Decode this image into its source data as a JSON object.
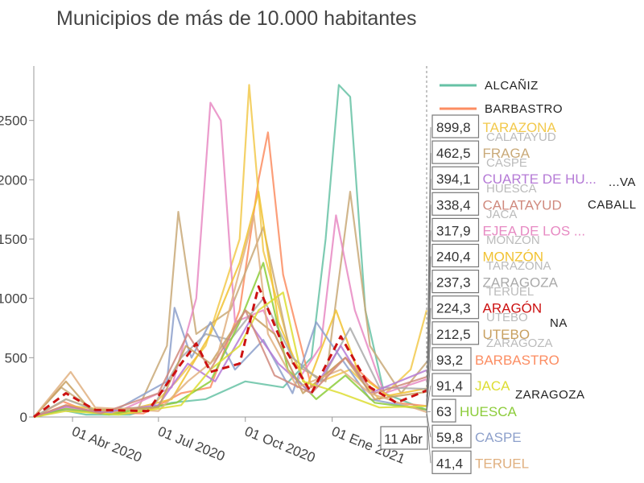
{
  "chart_data": {
    "type": "line",
    "title": "Municipios de más de 10.000 habitantes",
    "ylim": [
      0,
      2900
    ],
    "yticks": [
      0,
      500,
      1000,
      1500,
      2000,
      2500
    ],
    "ytick_labels": [
      "0",
      "500",
      "1000",
      "1500",
      "2000",
      "2500"
    ],
    "xlim": [
      "2020-02-20",
      "2021-04-11"
    ],
    "xticks": [
      "2020-04-01",
      "2020-07-01",
      "2020-10-01",
      "2021-01-01"
    ],
    "xtick_labels": [
      "01 Abr 2020",
      "01 Jul 2020",
      "01 Oct 2020",
      "01 Ene 2021"
    ],
    "hover_date": "11 Abr",
    "legend": [
      {
        "name": "ALCAÑIZ",
        "color": "#66c2a5"
      },
      {
        "name": "BARBASTRO",
        "color": "#fc8d62"
      }
    ],
    "hover_values": [
      {
        "value": "899,8",
        "name": "TARAZONA",
        "color": "#f2c94c"
      },
      {
        "value": "462,5",
        "name": "FRAGA",
        "color": "#c9a978"
      },
      {
        "value": "394,1",
        "name": "CUARTE DE HU...",
        "color": "#b57ad6"
      },
      {
        "value": "338,4",
        "name": "CALATAYUD",
        "color": "#d08a7e"
      },
      {
        "value": "317,9",
        "name": "EJEA DE LOS ...",
        "color": "#e78ac3"
      },
      {
        "value": "240,4",
        "name": "MONZÓN",
        "color": "#f1c232"
      },
      {
        "value": "237,3",
        "name": "ZARAGOZA",
        "color": "#aaaaaa"
      },
      {
        "value": "224,3",
        "name": "ARAGÓN",
        "color": "#cc1111"
      },
      {
        "value": "212,5",
        "name": "UTEBO",
        "color": "#c8a060"
      },
      {
        "value": "93,2",
        "name": "BARBASTRO",
        "color": "#fc8d62"
      },
      {
        "value": "91,4",
        "name": "JACA",
        "color": "#dddd33"
      },
      {
        "value": "63",
        "name": "HUESCA",
        "color": "#8ccc3a"
      },
      {
        "value": "59,8",
        "name": "CASPE",
        "color": "#8da0cb"
      },
      {
        "value": "41,4",
        "name": "TERUEL",
        "color": "#e0b080"
      }
    ],
    "ghost_labels": [
      "CALATAYUD",
      "CASPE",
      "HUESCA",
      "JACA",
      "MONZÓN",
      "TARAZONA",
      "TERUEL",
      "UTEBO",
      "ZARAGOZA"
    ],
    "overlapped_labels": [
      {
        "text": "...VA"
      },
      {
        "text": "CABALL"
      },
      {
        "text": "NA"
      },
      {
        "text": "ZARAGOZA"
      }
    ],
    "series": [
      {
        "name": "ALCAÑIZ",
        "color": "#66c2a5",
        "points": [
          [
            "2020-02-20",
            0
          ],
          [
            "2020-03-20",
            60
          ],
          [
            "2020-04-15",
            20
          ],
          [
            "2020-06-01",
            20
          ],
          [
            "2020-07-15",
            120
          ],
          [
            "2020-08-20",
            150
          ],
          [
            "2020-10-01",
            300
          ],
          [
            "2020-11-10",
            250
          ],
          [
            "2020-12-10",
            500
          ],
          [
            "2020-12-25",
            1500
          ],
          [
            "2021-01-08",
            2800
          ],
          [
            "2021-01-20",
            2700
          ],
          [
            "2021-02-05",
            900
          ],
          [
            "2021-02-25",
            200
          ],
          [
            "2021-04-11",
            60
          ]
        ]
      },
      {
        "name": "BARBASTRO",
        "color": "#fc8d62",
        "points": [
          [
            "2020-02-20",
            0
          ],
          [
            "2020-03-22",
            130
          ],
          [
            "2020-04-20",
            40
          ],
          [
            "2020-06-15",
            30
          ],
          [
            "2020-07-25",
            200
          ],
          [
            "2020-08-25",
            250
          ],
          [
            "2020-09-25",
            900
          ],
          [
            "2020-10-15",
            2000
          ],
          [
            "2020-10-25",
            2400
          ],
          [
            "2020-11-10",
            1200
          ],
          [
            "2020-12-10",
            250
          ],
          [
            "2021-01-15",
            500
          ],
          [
            "2021-02-10",
            300
          ],
          [
            "2021-03-10",
            120
          ],
          [
            "2021-04-11",
            93
          ]
        ]
      },
      {
        "name": "TARAZONA",
        "color": "#f2c94c",
        "points": [
          [
            "2020-02-20",
            0
          ],
          [
            "2020-03-25",
            150
          ],
          [
            "2020-05-01",
            50
          ],
          [
            "2020-06-20",
            60
          ],
          [
            "2020-07-20",
            300
          ],
          [
            "2020-08-20",
            600
          ],
          [
            "2020-09-25",
            1500
          ],
          [
            "2020-10-05",
            2800
          ],
          [
            "2020-10-20",
            1400
          ],
          [
            "2020-11-20",
            500
          ],
          [
            "2020-12-20",
            300
          ],
          [
            "2021-01-20",
            400
          ],
          [
            "2021-02-20",
            150
          ],
          [
            "2021-03-25",
            400
          ],
          [
            "2021-04-11",
            900
          ]
        ]
      },
      {
        "name": "FRAGA",
        "color": "#c9a978",
        "points": [
          [
            "2020-02-20",
            0
          ],
          [
            "2020-03-20",
            250
          ],
          [
            "2020-04-25",
            50
          ],
          [
            "2020-06-10",
            80
          ],
          [
            "2020-07-10",
            600
          ],
          [
            "2020-07-22",
            1730
          ],
          [
            "2020-08-10",
            700
          ],
          [
            "2020-09-15",
            900
          ],
          [
            "2020-10-20",
            1600
          ],
          [
            "2020-11-20",
            450
          ],
          [
            "2020-12-25",
            300
          ],
          [
            "2021-01-20",
            1900
          ],
          [
            "2021-02-10",
            600
          ],
          [
            "2021-03-15",
            200
          ],
          [
            "2021-04-11",
            462
          ]
        ]
      },
      {
        "name": "EJEA DE LOS ...",
        "color": "#e78ac3",
        "points": [
          [
            "2020-02-20",
            0
          ],
          [
            "2020-03-25",
            80
          ],
          [
            "2020-05-15",
            30
          ],
          [
            "2020-07-15",
            250
          ],
          [
            "2020-08-10",
            1000
          ],
          [
            "2020-08-25",
            2650
          ],
          [
            "2020-09-05",
            2500
          ],
          [
            "2020-09-20",
            800
          ],
          [
            "2020-10-20",
            900
          ],
          [
            "2020-11-25",
            300
          ],
          [
            "2020-12-20",
            600
          ],
          [
            "2021-01-05",
            1700
          ],
          [
            "2021-01-25",
            900
          ],
          [
            "2021-02-25",
            200
          ],
          [
            "2021-04-11",
            318
          ]
        ]
      },
      {
        "name": "MONZÓN",
        "color": "#f1c232",
        "points": [
          [
            "2020-02-20",
            0
          ],
          [
            "2020-03-25",
            100
          ],
          [
            "2020-05-20",
            40
          ],
          [
            "2020-07-15",
            150
          ],
          [
            "2020-08-25",
            700
          ],
          [
            "2020-09-25",
            1300
          ],
          [
            "2020-10-15",
            1900
          ],
          [
            "2020-11-05",
            800
          ],
          [
            "2020-12-05",
            250
          ],
          [
            "2021-01-05",
            900
          ],
          [
            "2021-01-30",
            350
          ],
          [
            "2021-03-01",
            180
          ],
          [
            "2021-04-11",
            240
          ]
        ]
      },
      {
        "name": "ZARAGOZA",
        "color": "#aaaaaa",
        "points": [
          [
            "2020-02-20",
            0
          ],
          [
            "2020-03-25",
            150
          ],
          [
            "2020-05-01",
            40
          ],
          [
            "2020-06-25",
            80
          ],
          [
            "2020-07-25",
            500
          ],
          [
            "2020-08-20",
            700
          ],
          [
            "2020-09-15",
            650
          ],
          [
            "2020-10-20",
            1000
          ],
          [
            "2020-11-20",
            500
          ],
          [
            "2020-12-20",
            300
          ],
          [
            "2021-01-20",
            750
          ],
          [
            "2021-02-20",
            250
          ],
          [
            "2021-04-11",
            237
          ]
        ]
      },
      {
        "name": "ARAGÓN",
        "color": "#cc1111",
        "dash": true,
        "points": [
          [
            "2020-02-20",
            0
          ],
          [
            "2020-03-25",
            200
          ],
          [
            "2020-04-25",
            60
          ],
          [
            "2020-06-20",
            50
          ],
          [
            "2020-07-25",
            450
          ],
          [
            "2020-08-10",
            620
          ],
          [
            "2020-08-25",
            380
          ],
          [
            "2020-09-25",
            450
          ],
          [
            "2020-10-15",
            1100
          ],
          [
            "2020-11-10",
            600
          ],
          [
            "2020-12-10",
            200
          ],
          [
            "2021-01-10",
            680
          ],
          [
            "2021-02-10",
            250
          ],
          [
            "2021-03-10",
            120
          ],
          [
            "2021-04-11",
            224
          ]
        ]
      },
      {
        "name": "CASPE",
        "color": "#8da0cb",
        "points": [
          [
            "2020-02-20",
            0
          ],
          [
            "2020-03-25",
            60
          ],
          [
            "2020-05-10",
            30
          ],
          [
            "2020-07-10",
            300
          ],
          [
            "2020-07-18",
            920
          ],
          [
            "2020-08-05",
            500
          ],
          [
            "2020-08-25",
            800
          ],
          [
            "2020-09-20",
            400
          ],
          [
            "2020-10-20",
            650
          ],
          [
            "2020-11-20",
            200
          ],
          [
            "2020-12-15",
            800
          ],
          [
            "2021-01-10",
            500
          ],
          [
            "2021-02-10",
            150
          ],
          [
            "2021-04-11",
            60
          ]
        ]
      },
      {
        "name": "HUESCA",
        "color": "#8ccc3a",
        "points": [
          [
            "2020-02-20",
            0
          ],
          [
            "2020-03-25",
            70
          ],
          [
            "2020-05-10",
            20
          ],
          [
            "2020-07-20",
            120
          ],
          [
            "2020-08-25",
            300
          ],
          [
            "2020-09-25",
            800
          ],
          [
            "2020-10-20",
            1300
          ],
          [
            "2020-11-15",
            400
          ],
          [
            "2020-12-15",
            150
          ],
          [
            "2021-01-15",
            350
          ],
          [
            "2021-02-15",
            120
          ],
          [
            "2021-04-11",
            63
          ]
        ]
      },
      {
        "name": "CUARTE DE HU...",
        "color": "#b57ad6",
        "points": [
          [
            "2020-02-20",
            0
          ],
          [
            "2020-03-25",
            90
          ],
          [
            "2020-05-01",
            40
          ],
          [
            "2020-07-01",
            100
          ],
          [
            "2020-08-01",
            450
          ],
          [
            "2020-08-30",
            300
          ],
          [
            "2020-10-05",
            800
          ],
          [
            "2020-11-05",
            450
          ],
          [
            "2020-12-10",
            200
          ],
          [
            "2021-01-10",
            600
          ],
          [
            "2021-02-10",
            200
          ],
          [
            "2021-04-11",
            394
          ]
        ]
      },
      {
        "name": "UTEBO",
        "color": "#c8a060",
        "points": [
          [
            "2020-02-20",
            0
          ],
          [
            "2020-03-25",
            300
          ],
          [
            "2020-04-20",
            60
          ],
          [
            "2020-07-01",
            80
          ],
          [
            "2020-07-30",
            600
          ],
          [
            "2020-08-25",
            450
          ],
          [
            "2020-10-01",
            900
          ],
          [
            "2020-11-01",
            700
          ],
          [
            "2020-12-01",
            200
          ],
          [
            "2021-01-15",
            500
          ],
          [
            "2021-02-15",
            150
          ],
          [
            "2021-04-11",
            212
          ]
        ]
      },
      {
        "name": "TERUEL",
        "color": "#e0b080",
        "points": [
          [
            "2020-02-20",
            0
          ],
          [
            "2020-03-30",
            380
          ],
          [
            "2020-04-25",
            80
          ],
          [
            "2020-07-01",
            50
          ],
          [
            "2020-08-01",
            300
          ],
          [
            "2020-09-01",
            500
          ],
          [
            "2020-10-10",
            1700
          ],
          [
            "2020-10-25",
            700
          ],
          [
            "2020-11-25",
            250
          ],
          [
            "2021-01-10",
            400
          ],
          [
            "2021-02-10",
            200
          ],
          [
            "2021-04-11",
            41
          ]
        ]
      },
      {
        "name": "JACA",
        "color": "#dddd33",
        "points": [
          [
            "2020-02-20",
            0
          ],
          [
            "2020-03-25",
            50
          ],
          [
            "2020-05-20",
            20
          ],
          [
            "2020-07-25",
            100
          ],
          [
            "2020-08-25",
            400
          ],
          [
            "2020-09-25",
            600
          ],
          [
            "2020-10-15",
            900
          ],
          [
            "2020-11-10",
            1050
          ],
          [
            "2020-12-01",
            300
          ],
          [
            "2021-01-10",
            200
          ],
          [
            "2021-02-20",
            80
          ],
          [
            "2021-04-11",
            91
          ]
        ]
      },
      {
        "name": "CALATAYUD",
        "color": "#d08a7e",
        "points": [
          [
            "2020-02-20",
            0
          ],
          [
            "2020-03-25",
            100
          ],
          [
            "2020-05-01",
            30
          ],
          [
            "2020-07-01",
            200
          ],
          [
            "2020-08-01",
            700
          ],
          [
            "2020-08-25",
            400
          ],
          [
            "2020-10-01",
            900
          ],
          [
            "2020-11-01",
            350
          ],
          [
            "2020-12-10",
            200
          ],
          [
            "2021-01-15",
            500
          ],
          [
            "2021-02-15",
            200
          ],
          [
            "2021-04-11",
            338
          ]
        ]
      }
    ]
  }
}
